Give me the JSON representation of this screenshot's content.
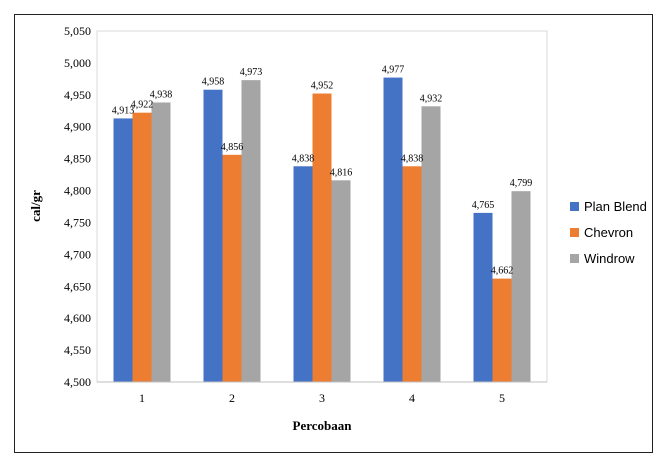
{
  "chart_data": {
    "type": "bar",
    "categories": [
      "1",
      "2",
      "3",
      "4",
      "5"
    ],
    "series": [
      {
        "name": "Plan Blend",
        "color": "#4472C4",
        "values": [
          4913,
          4958,
          4838,
          4977,
          4765
        ],
        "labels": [
          "4,913",
          "4,958",
          "4,838",
          "4,977",
          "4,765"
        ]
      },
      {
        "name": "Chevron",
        "color": "#ED7D31",
        "values": [
          4922,
          4856,
          4952,
          4838,
          4662
        ],
        "labels": [
          "4,922",
          "4,856",
          "4,952",
          "4,838",
          "4,662"
        ]
      },
      {
        "name": "Windrow",
        "color": "#A5A5A5",
        "values": [
          4938,
          4973,
          4816,
          4932,
          4799
        ],
        "labels": [
          "4,938",
          "4,973",
          "4,816",
          "4,932",
          "4,799"
        ]
      }
    ],
    "xlabel": "Percobaan",
    "ylabel": "cal/gr",
    "ylim": [
      4500,
      5050
    ],
    "yticks": [
      4500,
      4550,
      4600,
      4650,
      4700,
      4750,
      4800,
      4850,
      4900,
      4950,
      5000,
      5050
    ],
    "ytick_labels": [
      "4,500",
      "4,550",
      "4,600",
      "4,650",
      "4,700",
      "4,750",
      "4,800",
      "4,850",
      "4,900",
      "4,950",
      "5,000",
      "5,050"
    ],
    "grid": false,
    "legend_position": "right"
  }
}
